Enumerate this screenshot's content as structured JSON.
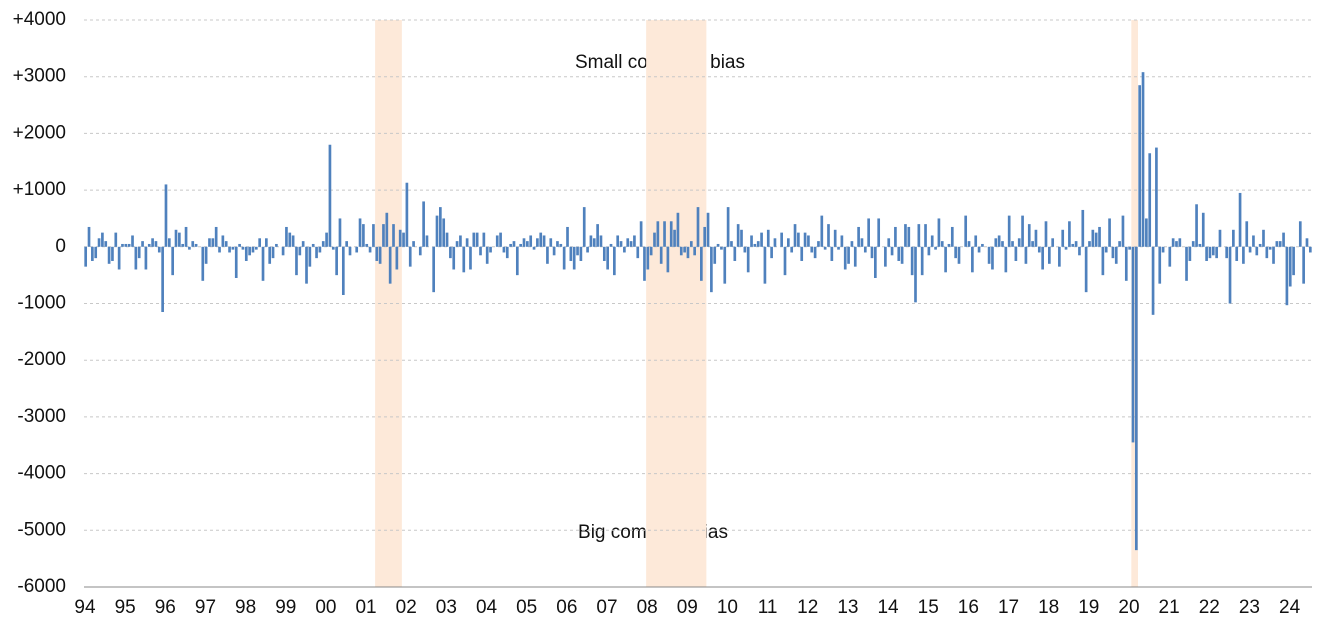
{
  "chart_data": {
    "type": "bar",
    "annotations": [
      "Small company bias",
      "Big company bias"
    ],
    "color": "#4f81bd",
    "shade_color": "#fde9d9",
    "grid": true,
    "shaded": [
      [
        87,
        94
      ],
      [
        168,
        185
      ],
      [
        313,
        314
      ]
    ],
    "ylim": [
      -6000,
      4000
    ],
    "yticks": [
      -6000,
      -5000,
      -4000,
      -3000,
      -2000,
      -1000,
      0,
      {
        "value": 1000,
        "label": "+1000"
      },
      {
        "value": 2000,
        "label": "+2000"
      },
      {
        "value": 3000,
        "label": "+3000"
      },
      {
        "value": 4000,
        "label": "+4000"
      }
    ],
    "categories": [
      "94",
      null,
      null,
      null,
      null,
      null,
      null,
      null,
      null,
      null,
      null,
      null,
      "95",
      null,
      null,
      null,
      null,
      null,
      null,
      null,
      null,
      null,
      null,
      null,
      "96",
      null,
      null,
      null,
      null,
      null,
      null,
      null,
      null,
      null,
      null,
      null,
      "97",
      null,
      null,
      null,
      null,
      null,
      null,
      null,
      null,
      null,
      null,
      null,
      "98",
      null,
      null,
      null,
      null,
      null,
      null,
      null,
      null,
      null,
      null,
      null,
      "99",
      null,
      null,
      null,
      null,
      null,
      null,
      null,
      null,
      null,
      null,
      null,
      "00",
      null,
      null,
      null,
      null,
      null,
      null,
      null,
      null,
      null,
      null,
      null,
      "01",
      null,
      null,
      null,
      null,
      null,
      null,
      null,
      null,
      null,
      null,
      null,
      "02",
      null,
      null,
      null,
      null,
      null,
      null,
      null,
      null,
      null,
      null,
      null,
      "03",
      null,
      null,
      null,
      null,
      null,
      null,
      null,
      null,
      null,
      null,
      null,
      "04",
      null,
      null,
      null,
      null,
      null,
      null,
      null,
      null,
      null,
      null,
      null,
      "05",
      null,
      null,
      null,
      null,
      null,
      null,
      null,
      null,
      null,
      null,
      null,
      "06",
      null,
      null,
      null,
      null,
      null,
      null,
      null,
      null,
      null,
      null,
      null,
      "07",
      null,
      null,
      null,
      null,
      null,
      null,
      null,
      null,
      null,
      null,
      null,
      "08",
      null,
      null,
      null,
      null,
      null,
      null,
      null,
      null,
      null,
      null,
      null,
      "09",
      null,
      null,
      null,
      null,
      null,
      null,
      null,
      null,
      null,
      null,
      null,
      "10",
      null,
      null,
      null,
      null,
      null,
      null,
      null,
      null,
      null,
      null,
      null,
      "11",
      null,
      null,
      null,
      null,
      null,
      null,
      null,
      null,
      null,
      null,
      null,
      "12",
      null,
      null,
      null,
      null,
      null,
      null,
      null,
      null,
      null,
      null,
      null,
      "13",
      null,
      null,
      null,
      null,
      null,
      null,
      null,
      null,
      null,
      null,
      null,
      "14",
      null,
      null,
      null,
      null,
      null,
      null,
      null,
      null,
      null,
      null,
      null,
      "15",
      null,
      null,
      null,
      null,
      null,
      null,
      null,
      null,
      null,
      null,
      null,
      "16",
      null,
      null,
      null,
      null,
      null,
      null,
      null,
      null,
      null,
      null,
      null,
      "17",
      null,
      null,
      null,
      null,
      null,
      null,
      null,
      null,
      null,
      null,
      null,
      "18",
      null,
      null,
      null,
      null,
      null,
      null,
      null,
      null,
      null,
      null,
      null,
      "19",
      null,
      null,
      null,
      null,
      null,
      null,
      null,
      null,
      null,
      null,
      null,
      "20",
      null,
      null,
      null,
      null,
      null,
      null,
      null,
      null,
      null,
      null,
      null,
      "21",
      null,
      null,
      null,
      null,
      null,
      null,
      null,
      null,
      null,
      null,
      null,
      "22",
      null,
      null,
      null,
      null,
      null,
      null,
      null,
      null,
      null,
      null,
      null,
      "23",
      null,
      null,
      null,
      null,
      null,
      null,
      null,
      null,
      null,
      null,
      null,
      "24",
      null,
      null,
      null,
      null,
      null,
      null
    ],
    "values": [
      -350,
      350,
      -250,
      -200,
      150,
      250,
      100,
      -300,
      -250,
      250,
      -400,
      50,
      50,
      50,
      200,
      -400,
      -200,
      100,
      -400,
      50,
      150,
      100,
      -100,
      -1150,
      1100,
      150,
      -500,
      300,
      250,
      50,
      350,
      -50,
      100,
      50,
      0,
      -600,
      -300,
      150,
      150,
      350,
      -100,
      200,
      100,
      -100,
      -50,
      -550,
      50,
      -50,
      -250,
      -150,
      -100,
      -50,
      150,
      -600,
      150,
      -300,
      -200,
      50,
      0,
      -150,
      350,
      250,
      200,
      -500,
      -150,
      100,
      -650,
      -350,
      50,
      -200,
      -100,
      100,
      250,
      1800,
      -50,
      -500,
      500,
      -850,
      100,
      -150,
      0,
      -100,
      500,
      400,
      50,
      -100,
      400,
      -250,
      -300,
      400,
      600,
      -650,
      400,
      -400,
      300,
      250,
      1130,
      -350,
      100,
      0,
      -150,
      800,
      200,
      0,
      -800,
      550,
      700,
      500,
      250,
      -200,
      -400,
      100,
      200,
      -450,
      150,
      -400,
      250,
      250,
      -150,
      250,
      -300,
      -100,
      0,
      200,
      250,
      -100,
      -200,
      50,
      100,
      -500,
      50,
      150,
      100,
      200,
      -50,
      150,
      250,
      200,
      -300,
      150,
      -150,
      100,
      50,
      -400,
      350,
      -250,
      -400,
      -150,
      -250,
      700,
      -100,
      200,
      150,
      400,
      200,
      -250,
      -400,
      50,
      -500,
      200,
      100,
      -100,
      150,
      100,
      200,
      -200,
      450,
      -600,
      -400,
      -150,
      250,
      450,
      -300,
      450,
      -450,
      450,
      300,
      600,
      -150,
      -100,
      -200,
      100,
      -150,
      700,
      -600,
      350,
      600,
      -800,
      -300,
      50,
      -50,
      -650,
      700,
      100,
      -250,
      400,
      300,
      -100,
      -450,
      200,
      50,
      100,
      250,
      -650,
      300,
      -200,
      150,
      0,
      250,
      -500,
      150,
      -100,
      400,
      250,
      -250,
      250,
      200,
      -100,
      -200,
      100,
      550,
      -50,
      400,
      -250,
      300,
      -50,
      200,
      -400,
      -300,
      100,
      -350,
      350,
      150,
      -100,
      500,
      -200,
      -550,
      500,
      0,
      -350,
      150,
      -150,
      350,
      -250,
      -300,
      400,
      350,
      -500,
      -980,
      400,
      -500,
      400,
      -150,
      200,
      -50,
      500,
      100,
      -450,
      50,
      350,
      -200,
      -300,
      0,
      550,
      100,
      -450,
      200,
      -100,
      50,
      0,
      -300,
      -400,
      150,
      200,
      100,
      -450,
      550,
      100,
      -250,
      150,
      550,
      -300,
      400,
      100,
      300,
      -100,
      -400,
      450,
      -300,
      150,
      0,
      -350,
      300,
      -50,
      450,
      50,
      100,
      -150,
      650,
      -800,
      100,
      300,
      250,
      350,
      -500,
      -100,
      500,
      -200,
      -300,
      100,
      550,
      -600,
      -50,
      -3450,
      -5350,
      2850,
      3080,
      500,
      1650,
      -1200,
      1750,
      -650,
      -100,
      0,
      -350,
      150,
      100,
      150,
      0,
      -600,
      -250,
      100,
      750,
      50,
      600,
      -250,
      -200,
      -150,
      -200,
      300,
      0,
      -200,
      -1000,
      300,
      -250,
      950,
      -300,
      450,
      -100,
      200,
      -150,
      50,
      300,
      -200,
      -50,
      -300,
      100,
      100,
      250,
      -1030,
      -700,
      -500,
      0,
      450,
      -650,
      150,
      -100
    ]
  }
}
